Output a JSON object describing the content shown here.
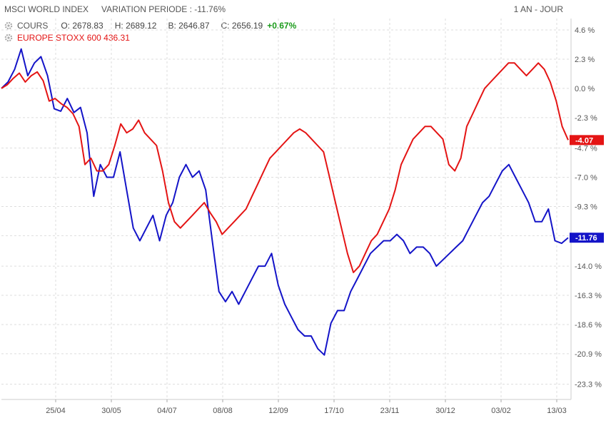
{
  "header": {
    "index_name": "MSCI WORLD INDEX",
    "variation": "VARIATION PERIODE : -11.76%",
    "period": "1 AN - JOUR"
  },
  "quote": {
    "label": "COURS",
    "open": "O: 2678.83",
    "high": "H: 2689.12",
    "low": "B: 2646.87",
    "close": "C: 2656.19",
    "change": "+0.67%"
  },
  "compare": {
    "label": "EUROPE STOXX 600  436.31"
  },
  "chart_data": {
    "type": "line",
    "x_ticks": [
      "25/04",
      "30/05",
      "04/07",
      "08/08",
      "12/09",
      "17/10",
      "23/11",
      "30/12",
      "03/02",
      "13/03"
    ],
    "y_ticks": [
      "4.6 %",
      "2.3 %",
      "0.0 %",
      "-2.3 %",
      "-4.7 %",
      "-7.0 %",
      "-9.3 %",
      "-11.6 %",
      "-14.0 %",
      "-16.3 %",
      "-18.6 %",
      "-20.9 %",
      "-23.3 %"
    ],
    "y_values": [
      4.6,
      2.3,
      0.0,
      -2.3,
      -4.7,
      -7.0,
      -9.3,
      -11.6,
      -14.0,
      -16.3,
      -18.6,
      -20.9,
      -23.3
    ],
    "ylim": [
      -24.5,
      5.5
    ],
    "grid": true,
    "series": [
      {
        "name": "MSCI WORLD INDEX",
        "color": "#1414c8",
        "last_label": "-11.76",
        "values": [
          0.0,
          0.5,
          1.5,
          3.1,
          1.0,
          2.0,
          2.5,
          1.0,
          -1.6,
          -1.8,
          -0.8,
          -1.9,
          -1.5,
          -3.5,
          -8.5,
          -6.0,
          -7.0,
          -7.0,
          -5.0,
          -8.0,
          -11.0,
          -12.0,
          -11.0,
          -10.0,
          -12.0,
          -10.0,
          -9.0,
          -7.0,
          -6.0,
          -7.0,
          -6.5,
          -8.0,
          -12.0,
          -16.0,
          -16.8,
          -16.0,
          -17.0,
          -16.0,
          -15.0,
          -14.0,
          -14.0,
          -13.0,
          -15.5,
          -17.0,
          -18.0,
          -19.0,
          -19.5,
          -19.5,
          -20.5,
          -21.0,
          -18.5,
          -17.5,
          -17.5,
          -16.0,
          -15.0,
          -14.0,
          -13.0,
          -12.5,
          -12.0,
          -12.0,
          -11.5,
          -12.0,
          -13.0,
          -12.5,
          -12.5,
          -13.0,
          -14.0,
          -13.5,
          -13.0,
          -12.5,
          -12.0,
          -11.0,
          -10.0,
          -9.0,
          -8.5,
          -7.5,
          -6.5,
          -6.0,
          -7.0,
          -8.0,
          -9.0,
          -10.5,
          -10.5,
          -9.5,
          -12.0,
          -12.2,
          -11.76
        ]
      },
      {
        "name": "EUROPE STOXX 600",
        "color": "#e41414",
        "last_label": "-4.07",
        "values": [
          0.0,
          0.3,
          0.8,
          1.2,
          0.5,
          1.0,
          1.3,
          0.6,
          -1.0,
          -0.8,
          -1.2,
          -1.5,
          -2.0,
          -3.0,
          -6.0,
          -5.5,
          -6.5,
          -6.5,
          -6.0,
          -4.5,
          -2.8,
          -3.5,
          -3.2,
          -2.5,
          -3.5,
          -4.0,
          -4.5,
          -6.5,
          -9.0,
          -10.5,
          -11.0,
          -10.5,
          -10.0,
          -9.5,
          -9.0,
          -9.8,
          -10.5,
          -11.5,
          -11.0,
          -10.5,
          -10.0,
          -9.5,
          -8.5,
          -7.5,
          -6.5,
          -5.5,
          -5.0,
          -4.5,
          -4.0,
          -3.5,
          -3.2,
          -3.5,
          -4.0,
          -4.5,
          -5.0,
          -7.0,
          -9.0,
          -11.0,
          -13.0,
          -14.5,
          -14.0,
          -13.0,
          -12.0,
          -11.5,
          -10.5,
          -9.5,
          -8.0,
          -6.0,
          -5.0,
          -4.0,
          -3.5,
          -3.0,
          -3.0,
          -3.5,
          -4.0,
          -6.0,
          -6.5,
          -5.5,
          -3.0,
          -2.0,
          -1.0,
          0.0,
          0.5,
          1.0,
          1.5,
          2.0,
          2.0,
          1.5,
          1.0,
          1.5,
          2.0,
          1.5,
          0.5,
          -1.0,
          -3.0,
          -4.07
        ]
      }
    ]
  }
}
